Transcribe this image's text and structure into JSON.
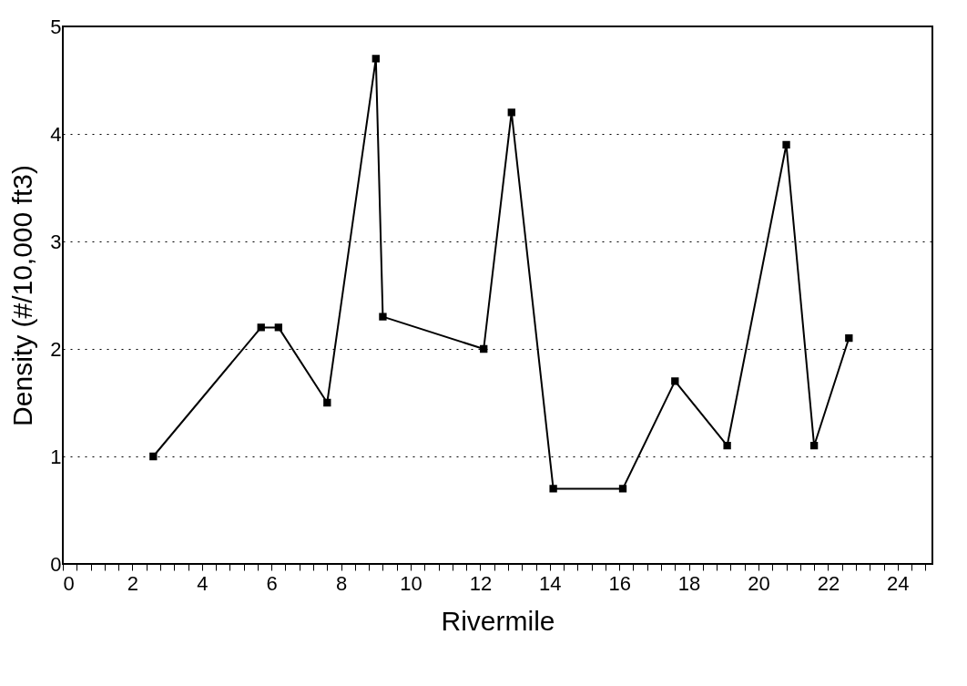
{
  "chart_data": {
    "type": "line",
    "xlabel": "Rivermile",
    "ylabel": "Density   (#/10,000 ft3)",
    "x": [
      2.6,
      5.7,
      6.2,
      7.6,
      9.0,
      9.2,
      12.1,
      12.9,
      14.1,
      16.1,
      17.6,
      19.1,
      20.8,
      21.6,
      22.6
    ],
    "series": [
      {
        "color": "#000000",
        "values": [
          1.0,
          2.2,
          2.2,
          1.5,
          4.7,
          2.3,
          2.0,
          4.2,
          0.7,
          0.7,
          1.7,
          1.1,
          3.9,
          1.1,
          2.1
        ]
      }
    ],
    "xlim": [
      0,
      25
    ],
    "xticks": [
      0,
      {
        "value": 0.4,
        "label": null
      },
      {
        "value": 0.8,
        "label": null
      },
      {
        "value": 1.2,
        "label": null
      },
      {
        "value": 1.6,
        "label": null
      },
      2,
      {
        "value": 2.4,
        "label": null
      },
      {
        "value": 2.8,
        "label": null
      },
      {
        "value": 3.2,
        "label": null
      },
      {
        "value": 3.6,
        "label": null
      },
      4,
      {
        "value": 4.4,
        "label": null
      },
      {
        "value": 4.8,
        "label": null
      },
      {
        "value": 5.2,
        "label": null
      },
      {
        "value": 5.6,
        "label": null
      },
      6,
      {
        "value": 6.4,
        "label": null
      },
      {
        "value": 6.8,
        "label": null
      },
      {
        "value": 7.2,
        "label": null
      },
      {
        "value": 7.6,
        "label": null
      },
      8,
      {
        "value": 8.4,
        "label": null
      },
      {
        "value": 8.8,
        "label": null
      },
      {
        "value": 9.2,
        "label": null
      },
      {
        "value": 9.6,
        "label": null
      },
      10,
      {
        "value": 10.4,
        "label": null
      },
      {
        "value": 10.8,
        "label": null
      },
      {
        "value": 11.2,
        "label": null
      },
      {
        "value": 11.6,
        "label": null
      },
      12,
      {
        "value": 12.4,
        "label": null
      },
      {
        "value": 12.8,
        "label": null
      },
      {
        "value": 13.2,
        "label": null
      },
      {
        "value": 13.6,
        "label": null
      },
      14,
      {
        "value": 14.4,
        "label": null
      },
      {
        "value": 14.8,
        "label": null
      },
      {
        "value": 15.2,
        "label": null
      },
      {
        "value": 15.6,
        "label": null
      },
      16,
      {
        "value": 16.4,
        "label": null
      },
      {
        "value": 16.8,
        "label": null
      },
      {
        "value": 17.2,
        "label": null
      },
      {
        "value": 17.6,
        "label": null
      },
      18,
      {
        "value": 18.4,
        "label": null
      },
      {
        "value": 18.8,
        "label": null
      },
      {
        "value": 19.2,
        "label": null
      },
      {
        "value": 19.6,
        "label": null
      },
      20,
      {
        "value": 20.4,
        "label": null
      },
      {
        "value": 20.8,
        "label": null
      },
      {
        "value": 21.2,
        "label": null
      },
      {
        "value": 21.6,
        "label": null
      },
      22,
      {
        "value": 22.4,
        "label": null
      },
      {
        "value": 22.8,
        "label": null
      },
      {
        "value": 23.2,
        "label": null
      },
      {
        "value": 23.6,
        "label": null
      },
      24,
      {
        "value": 24.4,
        "label": null
      },
      {
        "value": 24.8,
        "label": null
      }
    ],
    "ylim": [
      0,
      5
    ],
    "yticks": [
      0,
      1,
      2,
      3,
      4,
      5
    ],
    "grid": "y",
    "marker": "square",
    "line_style": "solid"
  }
}
